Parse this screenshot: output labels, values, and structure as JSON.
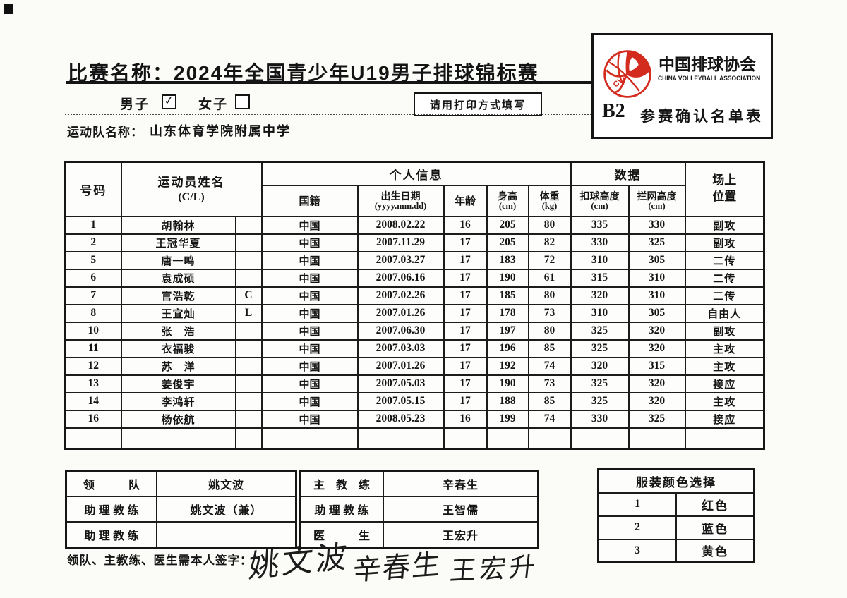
{
  "header": {
    "title": "比赛名称：2024年全国青少年U19男子排球锦标赛",
    "gender_male_label": "男子",
    "gender_female_label": "女子",
    "male_checked": true,
    "check_glyph": "✓",
    "print_note": "请用打印方式填写",
    "team_label": "运动队名称：",
    "team_name": "山东体育学院附属中学"
  },
  "logo_box": {
    "org_cn": "中国排球协会",
    "org_en": "CHINA VOLLEYBALL ASSOCIATION",
    "form_code": "B2",
    "form_name": "参赛确认名单表",
    "logo_red": "#d32b1e"
  },
  "roster_table": {
    "headers": {
      "number": "号码",
      "name_line1": "运动员姓名",
      "name_line2": "(C/L)",
      "personal_info": "个人信息",
      "nationality": "国籍",
      "dob_line1": "出生日期",
      "dob_line2": "(yyyy.mm.dd)",
      "age": "年龄",
      "height_line1": "身高",
      "height_line2": "(cm)",
      "weight_line1": "体重",
      "weight_line2": "(kg)",
      "data_group": "数据",
      "spike_line1": "扣球高度",
      "spike_line2": "(cm)",
      "block_line1": "拦网高度",
      "block_line2": "(cm)",
      "position_line1": "场上",
      "position_line2": "位置"
    },
    "rows": [
      {
        "number": "1",
        "name": "胡翰林",
        "cl": "",
        "nationality": "中国",
        "dob": "2008.02.22",
        "age": "16",
        "height": "205",
        "weight": "80",
        "spike": "335",
        "block": "330",
        "position": "副攻"
      },
      {
        "number": "2",
        "name": "王冠华夏",
        "cl": "",
        "nationality": "中国",
        "dob": "2007.11.29",
        "age": "17",
        "height": "205",
        "weight": "82",
        "spike": "330",
        "block": "325",
        "position": "副攻"
      },
      {
        "number": "5",
        "name": "唐一鸣",
        "cl": "",
        "nationality": "中国",
        "dob": "2007.03.27",
        "age": "17",
        "height": "183",
        "weight": "72",
        "spike": "310",
        "block": "305",
        "position": "二传"
      },
      {
        "number": "6",
        "name": "袁成硕",
        "cl": "",
        "nationality": "中国",
        "dob": "2007.06.16",
        "age": "17",
        "height": "190",
        "weight": "61",
        "spike": "315",
        "block": "310",
        "position": "二传"
      },
      {
        "number": "7",
        "name": "官浩乾",
        "cl": "C",
        "nationality": "中国",
        "dob": "2007.02.26",
        "age": "17",
        "height": "185",
        "weight": "80",
        "spike": "320",
        "block": "310",
        "position": "二传"
      },
      {
        "number": "8",
        "name": "王宜灿",
        "cl": "L",
        "nationality": "中国",
        "dob": "2007.01.26",
        "age": "17",
        "height": "178",
        "weight": "73",
        "spike": "310",
        "block": "305",
        "position": "自由人"
      },
      {
        "number": "10",
        "name": "张　浩",
        "cl": "",
        "nationality": "中国",
        "dob": "2007.06.30",
        "age": "17",
        "height": "197",
        "weight": "80",
        "spike": "325",
        "block": "320",
        "position": "副攻"
      },
      {
        "number": "11",
        "name": "衣福骏",
        "cl": "",
        "nationality": "中国",
        "dob": "2007.03.03",
        "age": "17",
        "height": "196",
        "weight": "85",
        "spike": "325",
        "block": "320",
        "position": "主攻"
      },
      {
        "number": "12",
        "name": "苏　洋",
        "cl": "",
        "nationality": "中国",
        "dob": "2007.01.26",
        "age": "17",
        "height": "192",
        "weight": "74",
        "spike": "320",
        "block": "315",
        "position": "主攻"
      },
      {
        "number": "13",
        "name": "姜俊宇",
        "cl": "",
        "nationality": "中国",
        "dob": "2007.05.03",
        "age": "17",
        "height": "190",
        "weight": "73",
        "spike": "325",
        "block": "320",
        "position": "接应"
      },
      {
        "number": "14",
        "name": "李鸿轩",
        "cl": "",
        "nationality": "中国",
        "dob": "2007.05.15",
        "age": "17",
        "height": "188",
        "weight": "85",
        "spike": "325",
        "block": "320",
        "position": "主攻"
      },
      {
        "number": "16",
        "name": "杨依航",
        "cl": "",
        "nationality": "中国",
        "dob": "2008.05.23",
        "age": "16",
        "height": "199",
        "weight": "74",
        "spike": "330",
        "block": "325",
        "position": "接应"
      }
    ]
  },
  "staff": {
    "left": [
      {
        "label": "领　　　队",
        "value": "姚文波"
      },
      {
        "label": "助 理 教 练",
        "value": "姚文波（兼）"
      },
      {
        "label": "助 理 教 练",
        "value": ""
      }
    ],
    "right": [
      {
        "label": "主　教　练",
        "value": "辛春生"
      },
      {
        "label": "助 理 教 练",
        "value": "王智儒"
      },
      {
        "label": "医　　　生",
        "value": "王宏升"
      }
    ]
  },
  "uniform_table": {
    "title": "服装颜色选择",
    "rows": [
      {
        "num": "1",
        "color": "红色"
      },
      {
        "num": "2",
        "color": "蓝色"
      },
      {
        "num": "3",
        "color": "黄色"
      }
    ]
  },
  "signature": {
    "label": "领队、主教练、医生需本人签字：",
    "names": [
      "姚文波",
      "辛春生",
      "王宏升"
    ]
  }
}
